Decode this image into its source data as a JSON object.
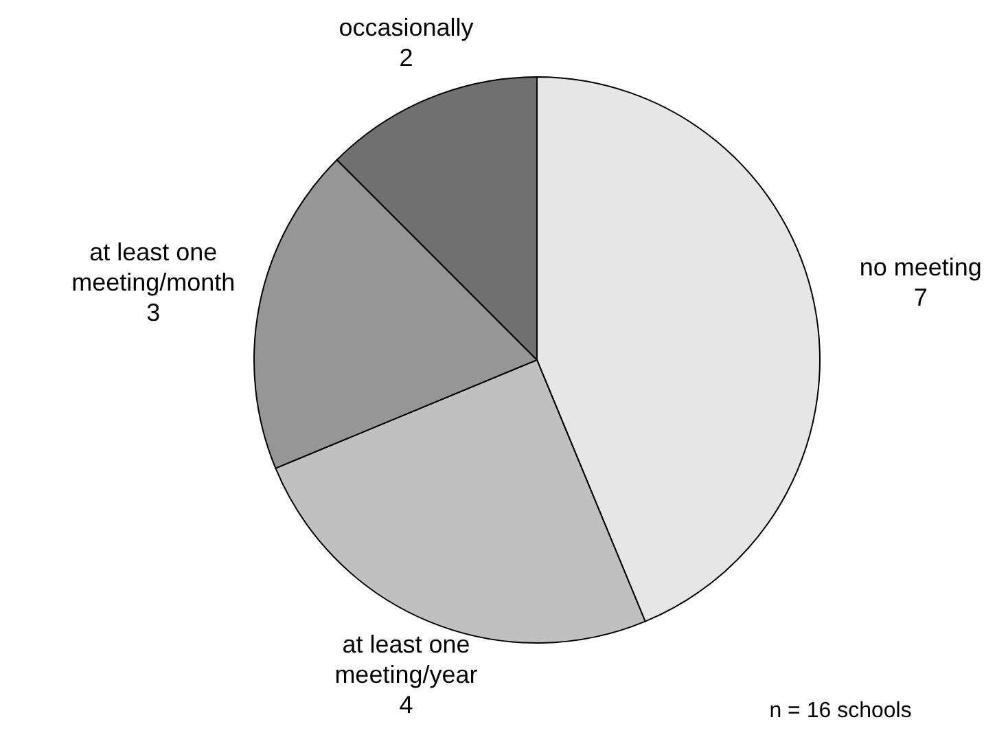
{
  "chart_data": {
    "type": "pie",
    "categories": [
      "no meeting",
      "at least one meeting/year",
      "at least one meeting/month",
      "occasionally"
    ],
    "values": [
      7,
      4,
      3,
      2
    ],
    "colors": [
      "#e6e6e6",
      "#c0c0c0",
      "#969696",
      "#707070"
    ],
    "data_labels": true,
    "annotations": [
      "n = 16 schools"
    ]
  }
}
